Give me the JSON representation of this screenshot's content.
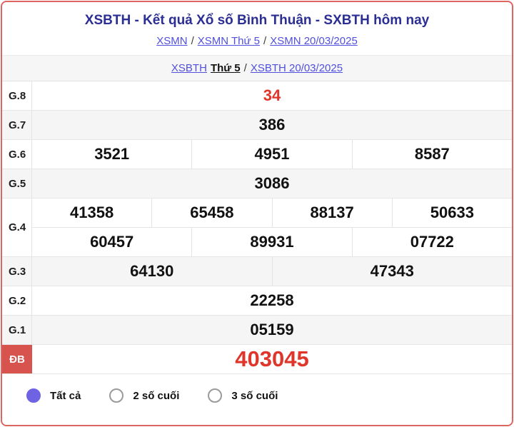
{
  "header": {
    "title": "XSBTH - Kết quả Xổ số Bình Thuận - SXBTH hôm nay",
    "separator": "/",
    "breadcrumb1": {
      "items": [
        "XSMN",
        "XSMN Thứ 5",
        "XSMN 20/03/2025"
      ]
    },
    "breadcrumb2": {
      "station_link": "XSBTH",
      "day": "Thứ 5",
      "date_link": "XSBTH 20/03/2025"
    }
  },
  "table": {
    "g8": {
      "label": "G.8",
      "cells": [
        "34"
      ]
    },
    "g7": {
      "label": "G.7",
      "cells": [
        "386"
      ]
    },
    "g6": {
      "label": "G.6",
      "cells": [
        "3521",
        "4951",
        "8587"
      ]
    },
    "g5": {
      "label": "G.5",
      "cells": [
        "3086"
      ]
    },
    "g4": {
      "label": "G.4",
      "row1": [
        "41358",
        "65458",
        "88137",
        "50633"
      ],
      "row2": [
        "60457",
        "89931",
        "07722"
      ]
    },
    "g3": {
      "label": "G.3",
      "cells": [
        "64130",
        "47343"
      ]
    },
    "g2": {
      "label": "G.2",
      "cells": [
        "22258"
      ]
    },
    "g1": {
      "label": "G.1",
      "cells": [
        "05159"
      ]
    },
    "db": {
      "label": "ĐB",
      "cells": [
        "403045"
      ]
    }
  },
  "filters": {
    "options": [
      {
        "label": "Tất cả",
        "selected": true
      },
      {
        "label": "2 số cuối",
        "selected": false
      },
      {
        "label": "3 số cuối",
        "selected": false
      }
    ]
  },
  "colors": {
    "title-navy": "#2b2e92",
    "link-blue": "#5150dc",
    "result-red": "#df352a",
    "special-bg": "#d7534e",
    "radio-selected": "#6f63e4",
    "card-border": "#dd6663",
    "row-alt-bg": "#f5f5f6",
    "strip-bg": "#f6f6f7"
  }
}
